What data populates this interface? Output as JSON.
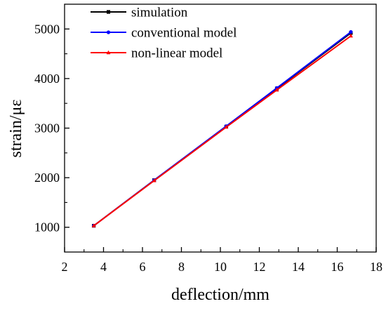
{
  "chart_data": {
    "type": "line",
    "title": "",
    "xlabel": "deflection/mm",
    "ylabel": "strain/με",
    "xlim": [
      2,
      18
    ],
    "ylim": [
      500,
      5500
    ],
    "x_ticks": [
      "2",
      "4",
      "6",
      "8",
      "10",
      "12",
      "14",
      "16",
      "18"
    ],
    "y_ticks": [
      "1000",
      "2000",
      "3000",
      "4000",
      "5000"
    ],
    "legend_position": "top-left",
    "grid": false,
    "series": [
      {
        "name": "simulation",
        "color": "#000000",
        "marker": "square",
        "x": [
          3.5,
          6.6,
          10.3,
          12.9,
          16.7
        ],
        "y": [
          1030,
          1950,
          3030,
          3800,
          4920
        ]
      },
      {
        "name": "conventional model",
        "color": "#0000ff",
        "marker": "circle",
        "x": [
          3.5,
          6.6,
          10.3,
          12.9,
          16.7
        ],
        "y": [
          1030,
          1950,
          3040,
          3810,
          4940
        ]
      },
      {
        "name": "non-linear model",
        "color": "#ff0000",
        "marker": "triangle",
        "x": [
          3.5,
          6.6,
          10.3,
          12.9,
          16.7
        ],
        "y": [
          1030,
          1940,
          3020,
          3770,
          4860
        ]
      }
    ]
  }
}
